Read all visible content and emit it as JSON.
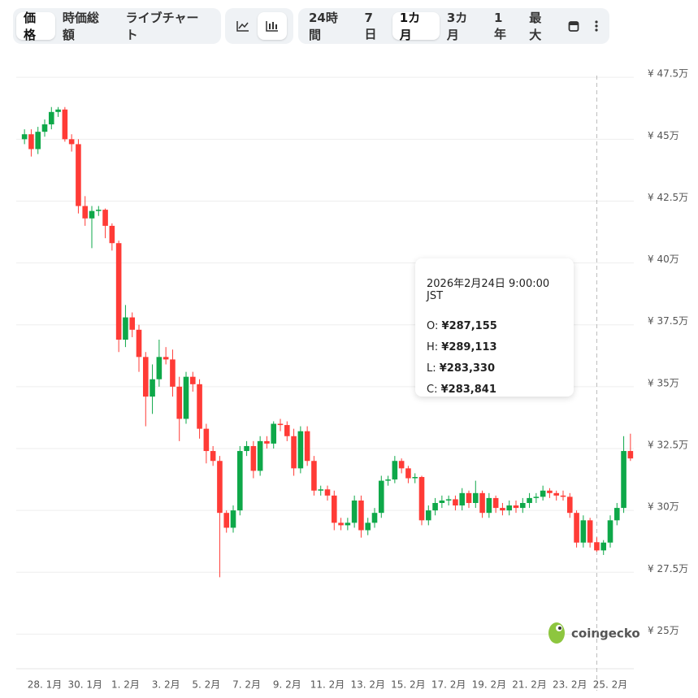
{
  "toolbar": {
    "views": [
      "価格",
      "時価総額",
      "ライブチャート"
    ],
    "ranges": [
      "24時間",
      "7日",
      "1カ月",
      "3カ月",
      "1年",
      "最大"
    ]
  },
  "chart_data": {
    "type": "candlestick",
    "categories": [
      null,
      null,
      null,
      "28. 1月",
      null,
      null,
      null,
      null,
      null,
      "30. 1月",
      null,
      null,
      null,
      null,
      null,
      "1. 2月",
      null,
      null,
      null,
      null,
      null,
      "3. 2月",
      null,
      null,
      null,
      null,
      null,
      "5. 2月",
      null,
      null,
      null,
      null,
      null,
      "7. 2月",
      null,
      null,
      null,
      null,
      null,
      "9. 2月",
      null,
      null,
      null,
      null,
      null,
      "11. 2月",
      null,
      null,
      null,
      null,
      null,
      "13. 2月",
      null,
      null,
      null,
      null,
      null,
      "15. 2月",
      null,
      null,
      null,
      null,
      null,
      "17. 2月",
      null,
      null,
      null,
      null,
      null,
      "19. 2月",
      null,
      null,
      null,
      null,
      null,
      "21. 2月",
      null,
      null,
      null,
      null,
      null,
      "23. 2月",
      null,
      null,
      null,
      null,
      null,
      "25. 2月",
      null,
      null,
      null
    ],
    "open": [
      45.0,
      45.2,
      44.6,
      45.3,
      45.6,
      46.1,
      46.2,
      45.0,
      44.8,
      42.3,
      41.8,
      42.1,
      42.15,
      41.5,
      40.8,
      36.9,
      37.8,
      37.3,
      36.2,
      34.6,
      35.3,
      36.2,
      36.1,
      35.0,
      33.7,
      35.4,
      35.1,
      33.3,
      32.4,
      32.0,
      29.9,
      29.3,
      30.0,
      32.4,
      32.6,
      31.6,
      32.8,
      32.7,
      33.5,
      33.45,
      33.0,
      31.7,
      33.2,
      32.0,
      30.8,
      30.85,
      30.6,
      29.5,
      29.4,
      29.5,
      30.4,
      29.2,
      29.5,
      29.9,
      31.2,
      31.25,
      32.0,
      31.7,
      31.3,
      31.35,
      29.6,
      30.0,
      30.3,
      30.4,
      30.45,
      30.2,
      30.7,
      30.3,
      30.7,
      29.9,
      30.5,
      30.1,
      30.0,
      30.2,
      30.1,
      30.3,
      30.5,
      30.55,
      30.8,
      30.7,
      30.6,
      30.55,
      29.9,
      28.7,
      29.6,
      28.7155,
      28.3841,
      28.7,
      29.6,
      30.1,
      32.4
    ],
    "high": [
      45.4,
      45.4,
      45.5,
      45.8,
      46.3,
      46.3,
      46.3,
      45.2,
      45.0,
      42.7,
      42.3,
      42.3,
      42.2,
      41.6,
      40.9,
      38.3,
      38.0,
      37.5,
      36.4,
      35.9,
      36.9,
      36.6,
      36.5,
      35.4,
      35.6,
      35.6,
      35.3,
      33.5,
      32.6,
      32.2,
      30.0,
      30.2,
      32.6,
      32.8,
      32.8,
      33.0,
      33.0,
      33.6,
      33.7,
      33.6,
      33.3,
      33.4,
      33.4,
      32.2,
      31.0,
      31.0,
      30.8,
      29.7,
      29.7,
      30.6,
      30.6,
      29.7,
      30.1,
      31.4,
      31.4,
      32.2,
      32.1,
      31.8,
      31.5,
      31.4,
      30.2,
      30.5,
      30.6,
      30.6,
      30.6,
      30.9,
      30.8,
      31.2,
      30.8,
      30.7,
      30.6,
      30.3,
      30.4,
      30.4,
      30.5,
      30.7,
      30.7,
      31.0,
      30.9,
      30.8,
      30.8,
      30.7,
      30.0,
      29.8,
      29.7,
      28.9113,
      28.8,
      29.8,
      30.3,
      33.0,
      33.1
    ],
    "low": [
      44.8,
      44.3,
      44.4,
      45.1,
      45.4,
      45.9,
      44.9,
      44.5,
      42.0,
      41.5,
      40.6,
      41.9,
      41.0,
      40.5,
      36.4,
      36.6,
      37.0,
      35.6,
      33.4,
      33.9,
      35.0,
      35.9,
      34.6,
      32.8,
      33.5,
      34.8,
      32.9,
      31.9,
      31.8,
      27.3,
      29.1,
      29.1,
      29.8,
      32.2,
      31.3,
      31.4,
      32.5,
      32.5,
      33.2,
      32.8,
      31.4,
      31.5,
      31.8,
      30.6,
      30.6,
      30.4,
      29.2,
      29.2,
      29.2,
      29.3,
      28.9,
      29.0,
      29.3,
      29.7,
      31.0,
      31.1,
      31.5,
      31.1,
      31.1,
      29.4,
      29.4,
      29.8,
      30.1,
      30.2,
      30.0,
      30.0,
      30.1,
      30.1,
      29.7,
      29.7,
      29.9,
      29.8,
      29.8,
      29.9,
      29.9,
      30.1,
      30.3,
      30.4,
      30.5,
      30.4,
      30.4,
      29.7,
      28.5,
      28.5,
      28.5,
      28.333,
      28.2,
      28.5,
      29.4,
      29.9,
      32.0
    ],
    "close": [
      45.2,
      44.6,
      45.3,
      45.6,
      46.1,
      46.2,
      45.0,
      44.8,
      42.3,
      41.8,
      42.1,
      42.15,
      41.5,
      40.8,
      36.9,
      37.8,
      37.3,
      36.2,
      34.6,
      35.3,
      36.2,
      36.1,
      35.0,
      33.7,
      35.4,
      35.1,
      33.3,
      32.4,
      32.0,
      29.9,
      29.3,
      30.0,
      32.4,
      32.6,
      31.6,
      32.8,
      32.7,
      33.5,
      33.45,
      33.0,
      31.7,
      33.2,
      32.0,
      30.8,
      30.85,
      30.6,
      29.5,
      29.4,
      29.5,
      30.4,
      29.2,
      29.5,
      29.9,
      31.2,
      31.25,
      32.0,
      31.7,
      31.3,
      31.35,
      29.6,
      30.0,
      30.3,
      30.4,
      30.45,
      30.2,
      30.7,
      30.3,
      30.7,
      29.9,
      30.5,
      30.1,
      30.0,
      30.2,
      30.1,
      30.3,
      30.5,
      30.55,
      30.8,
      30.7,
      30.6,
      30.55,
      29.9,
      28.7,
      29.6,
      28.7,
      28.3841,
      28.7,
      29.6,
      30.1,
      32.4,
      32.1
    ],
    "up_color": "#0ea849",
    "down_color": "#ff3b36",
    "ylim": [
      23.7,
      47.9
    ],
    "yticks": [
      {
        "value": 25,
        "label": "¥ 25万"
      },
      {
        "value": 27.5,
        "label": "¥ 27.5万"
      },
      {
        "value": 30,
        "label": "¥ 30万"
      },
      {
        "value": 32.5,
        "label": "¥ 32.5万"
      },
      {
        "value": 35,
        "label": "¥ 35万"
      },
      {
        "value": 37.5,
        "label": "¥ 37.5万"
      },
      {
        "value": 40,
        "label": "¥ 40万"
      },
      {
        "value": 42.5,
        "label": "¥ 42.5万"
      },
      {
        "value": 45,
        "label": "¥ 45万"
      },
      {
        "value": 47.5,
        "label": "¥ 47.5万"
      }
    ],
    "grid": true
  },
  "tooltip": {
    "title": "2026年2月24日 9:00:00 JST",
    "rows": [
      {
        "key": "O:",
        "value": "¥287,155"
      },
      {
        "key": "H:",
        "value": "¥289,113"
      },
      {
        "key": "L:",
        "value": "¥283,330"
      },
      {
        "key": "C:",
        "value": "¥283,841"
      }
    ]
  },
  "watermark": "coingecko"
}
